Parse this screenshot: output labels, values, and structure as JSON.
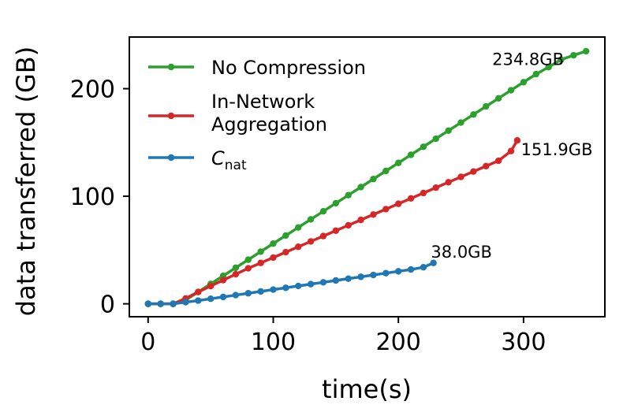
{
  "chart_data": {
    "type": "line",
    "xlabel": "time(s)",
    "ylabel": "data transferred (GB)",
    "xlim": [
      -15,
      365
    ],
    "ylim": [
      -12,
      248
    ],
    "xticks": [
      0,
      100,
      200,
      300
    ],
    "yticks": [
      0,
      100,
      200
    ],
    "legend_position": "top-left",
    "series": [
      {
        "name": "No Compression",
        "color": "#2ca02c",
        "x": [
          0,
          10,
          20,
          30,
          40,
          50,
          60,
          70,
          80,
          90,
          100,
          110,
          120,
          130,
          140,
          150,
          160,
          170,
          180,
          190,
          200,
          210,
          220,
          230,
          240,
          250,
          260,
          270,
          280,
          290,
          300,
          310,
          320,
          330,
          340,
          350
        ],
        "y": [
          0,
          0,
          0,
          3.5,
          11,
          18.5,
          26,
          33.5,
          41,
          48.5,
          56,
          63.5,
          71,
          78.5,
          86,
          93.5,
          101,
          108.5,
          116,
          123.5,
          131,
          138.5,
          146,
          153.5,
          161,
          168.5,
          176,
          183.5,
          191,
          198.5,
          206,
          213.5,
          220,
          227,
          231,
          234.8
        ]
      },
      {
        "name": "In-Network Aggregation",
        "legend_lines": [
          "In-Network",
          "Aggregation"
        ],
        "color": "#d62728",
        "x": [
          0,
          10,
          20,
          30,
          40,
          50,
          60,
          70,
          80,
          90,
          100,
          110,
          120,
          130,
          140,
          150,
          160,
          170,
          180,
          190,
          200,
          210,
          220,
          230,
          240,
          250,
          260,
          270,
          280,
          290,
          295
        ],
        "y": [
          0,
          0,
          0,
          5,
          11,
          16.5,
          22,
          27.5,
          33,
          38,
          43,
          48,
          53,
          58,
          63,
          68,
          73,
          78,
          83,
          88,
          93,
          98,
          103,
          108,
          113,
          118,
          123,
          128,
          133,
          142,
          151.9
        ]
      },
      {
        "name": "C_nat",
        "legend_main": "C",
        "legend_sub": "nat",
        "color": "#1f77b4",
        "x": [
          0,
          10,
          20,
          30,
          40,
          50,
          60,
          70,
          80,
          90,
          100,
          110,
          120,
          130,
          140,
          150,
          160,
          170,
          180,
          190,
          200,
          210,
          220,
          228
        ],
        "y": [
          0,
          0,
          0,
          1.5,
          3,
          4.7,
          6.4,
          8.1,
          9.8,
          11.5,
          13.2,
          14.9,
          16.6,
          18.3,
          20,
          21.7,
          23.4,
          25.1,
          26.8,
          28.5,
          30.2,
          31.9,
          34,
          38.0
        ]
      }
    ],
    "annotations": [
      {
        "text": "234.8GB",
        "x": 275,
        "y": 222
      },
      {
        "text": "151.9GB",
        "x": 298,
        "y": 138
      },
      {
        "text": "38.0GB",
        "x": 226,
        "y": 43
      }
    ]
  }
}
